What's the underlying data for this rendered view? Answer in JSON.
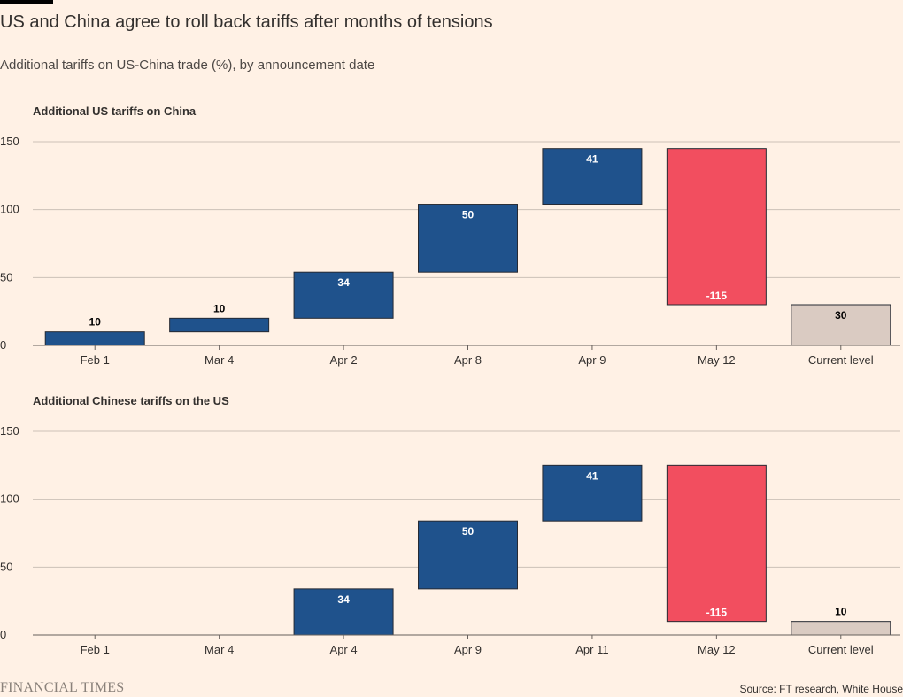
{
  "header": {
    "title": "US and China agree to roll back tariffs after months of tensions",
    "subtitle": "Additional tariffs on US-China trade (%), by announcement date"
  },
  "footer": {
    "logo_text": "FINANCIAL TIMES",
    "source": "Source: FT research, White House"
  },
  "colors": {
    "increase": "#1f528c",
    "decrease": "#f24e5f",
    "total": "#dacbc2",
    "grid": "#ccc1b7",
    "axis": "#66605c",
    "text": "#33302e"
  },
  "chart_data": [
    {
      "type": "bar",
      "subtype": "waterfall",
      "title": "Additional US tariffs on China",
      "categories": [
        "Feb 1",
        "Mar 4",
        "Apr 2",
        "Apr 8",
        "Apr 9",
        "May 12",
        "Current level"
      ],
      "values": [
        10,
        10,
        34,
        50,
        41,
        -115,
        30
      ],
      "value_labels": [
        "10",
        "10",
        "34",
        "50",
        "41",
        "-115",
        "30"
      ],
      "kinds": [
        "increase",
        "increase",
        "increase",
        "increase",
        "increase",
        "decrease",
        "total"
      ],
      "yticks": [
        0,
        50,
        100,
        150
      ],
      "ylim": [
        0,
        150
      ],
      "grid": true
    },
    {
      "type": "bar",
      "subtype": "waterfall",
      "title": "Additional Chinese tariffs on the US",
      "categories": [
        "Feb 1",
        "Mar 4",
        "Apr 4",
        "Apr 9",
        "Apr 11",
        "May 12",
        "Current level"
      ],
      "values": [
        0,
        0,
        34,
        50,
        41,
        -115,
        10
      ],
      "value_labels": [
        "",
        "",
        "34",
        "50",
        "41",
        "-115",
        "10"
      ],
      "kinds": [
        "increase",
        "increase",
        "increase",
        "increase",
        "increase",
        "decrease",
        "total"
      ],
      "yticks": [
        0,
        50,
        100,
        150
      ],
      "ylim": [
        0,
        150
      ],
      "grid": true
    }
  ]
}
